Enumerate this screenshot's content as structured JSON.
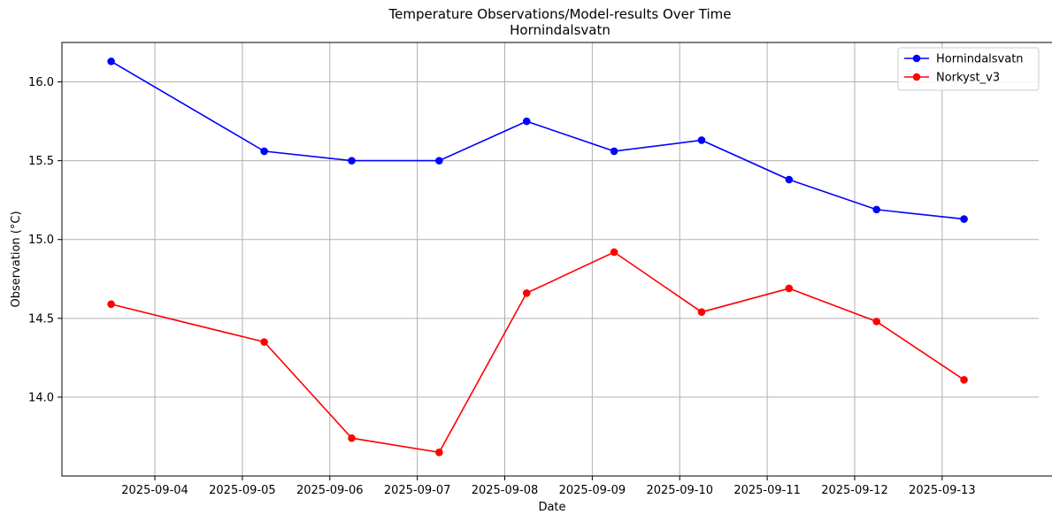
{
  "chart_data": {
    "type": "line",
    "title": "Temperature Observations/Model-results Over Time",
    "subtitle": "Hornindalsvatn",
    "xlabel": "Date",
    "ylabel": "Observation (°C)",
    "x_ticks": [
      "2025-09-04",
      "2025-09-05",
      "2025-09-06",
      "2025-09-07",
      "2025-09-08",
      "2025-09-09",
      "2025-09-10",
      "2025-09-11",
      "2025-09-12",
      "2025-09-13"
    ],
    "y_ticks": [
      "14.0",
      "14.5",
      "15.0",
      "15.5",
      "16.0"
    ],
    "xlim": [
      "2025-09-02 22:30",
      "2025-09-14 02:30"
    ],
    "ylim": [
      13.5,
      16.25
    ],
    "grid": true,
    "legend_position": "top-right",
    "x": [
      "2025-09-03 12:00",
      "2025-09-05 06:00",
      "2025-09-06 06:00",
      "2025-09-07 06:00",
      "2025-09-08 06:00",
      "2025-09-09 06:00",
      "2025-09-10 06:00",
      "2025-09-11 06:00",
      "2025-09-12 06:00",
      "2025-09-13 06:00"
    ],
    "series": [
      {
        "name": "Hornindalsvatn",
        "color": "#0000ff",
        "values": [
          16.13,
          15.56,
          15.5,
          15.5,
          15.75,
          15.56,
          15.63,
          15.38,
          15.19,
          15.13
        ]
      },
      {
        "name": "Norkyst_v3",
        "color": "#ff0000",
        "values": [
          14.59,
          14.35,
          13.74,
          13.65,
          14.66,
          14.92,
          14.54,
          14.69,
          14.48,
          14.11
        ]
      }
    ]
  }
}
